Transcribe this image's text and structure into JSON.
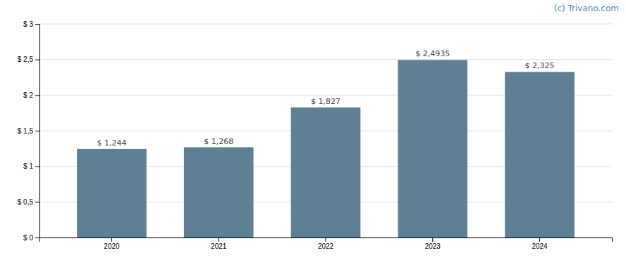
{
  "chart_data": {
    "type": "bar",
    "categories": [
      "2020",
      "2021",
      "2022",
      "2023",
      "2024"
    ],
    "values": [
      1.244,
      1.268,
      1.827,
      2.4935,
      2.325
    ],
    "value_labels": [
      "$ 1,244",
      "$ 1,268",
      "$ 1,827",
      "$ 2,4935",
      "$ 2,325"
    ],
    "data_labels": true,
    "color": "#5f7f94",
    "ylim": [
      0,
      3.0
    ],
    "yticks": [
      {
        "value": 0,
        "label": "$ 0"
      },
      {
        "value": 0.5,
        "label": "$ 0,5"
      },
      {
        "value": 1,
        "label": "$ 1"
      },
      {
        "value": 1.5,
        "label": "$ 1,5"
      },
      {
        "value": 2,
        "label": "$ 2"
      },
      {
        "value": 2.5,
        "label": "$ 2,5"
      },
      {
        "value": 3,
        "label": "$ 3"
      }
    ],
    "grid": true,
    "annotations": [
      {
        "text": "(c) Trivano.com",
        "color": "#5588aa"
      }
    ]
  }
}
